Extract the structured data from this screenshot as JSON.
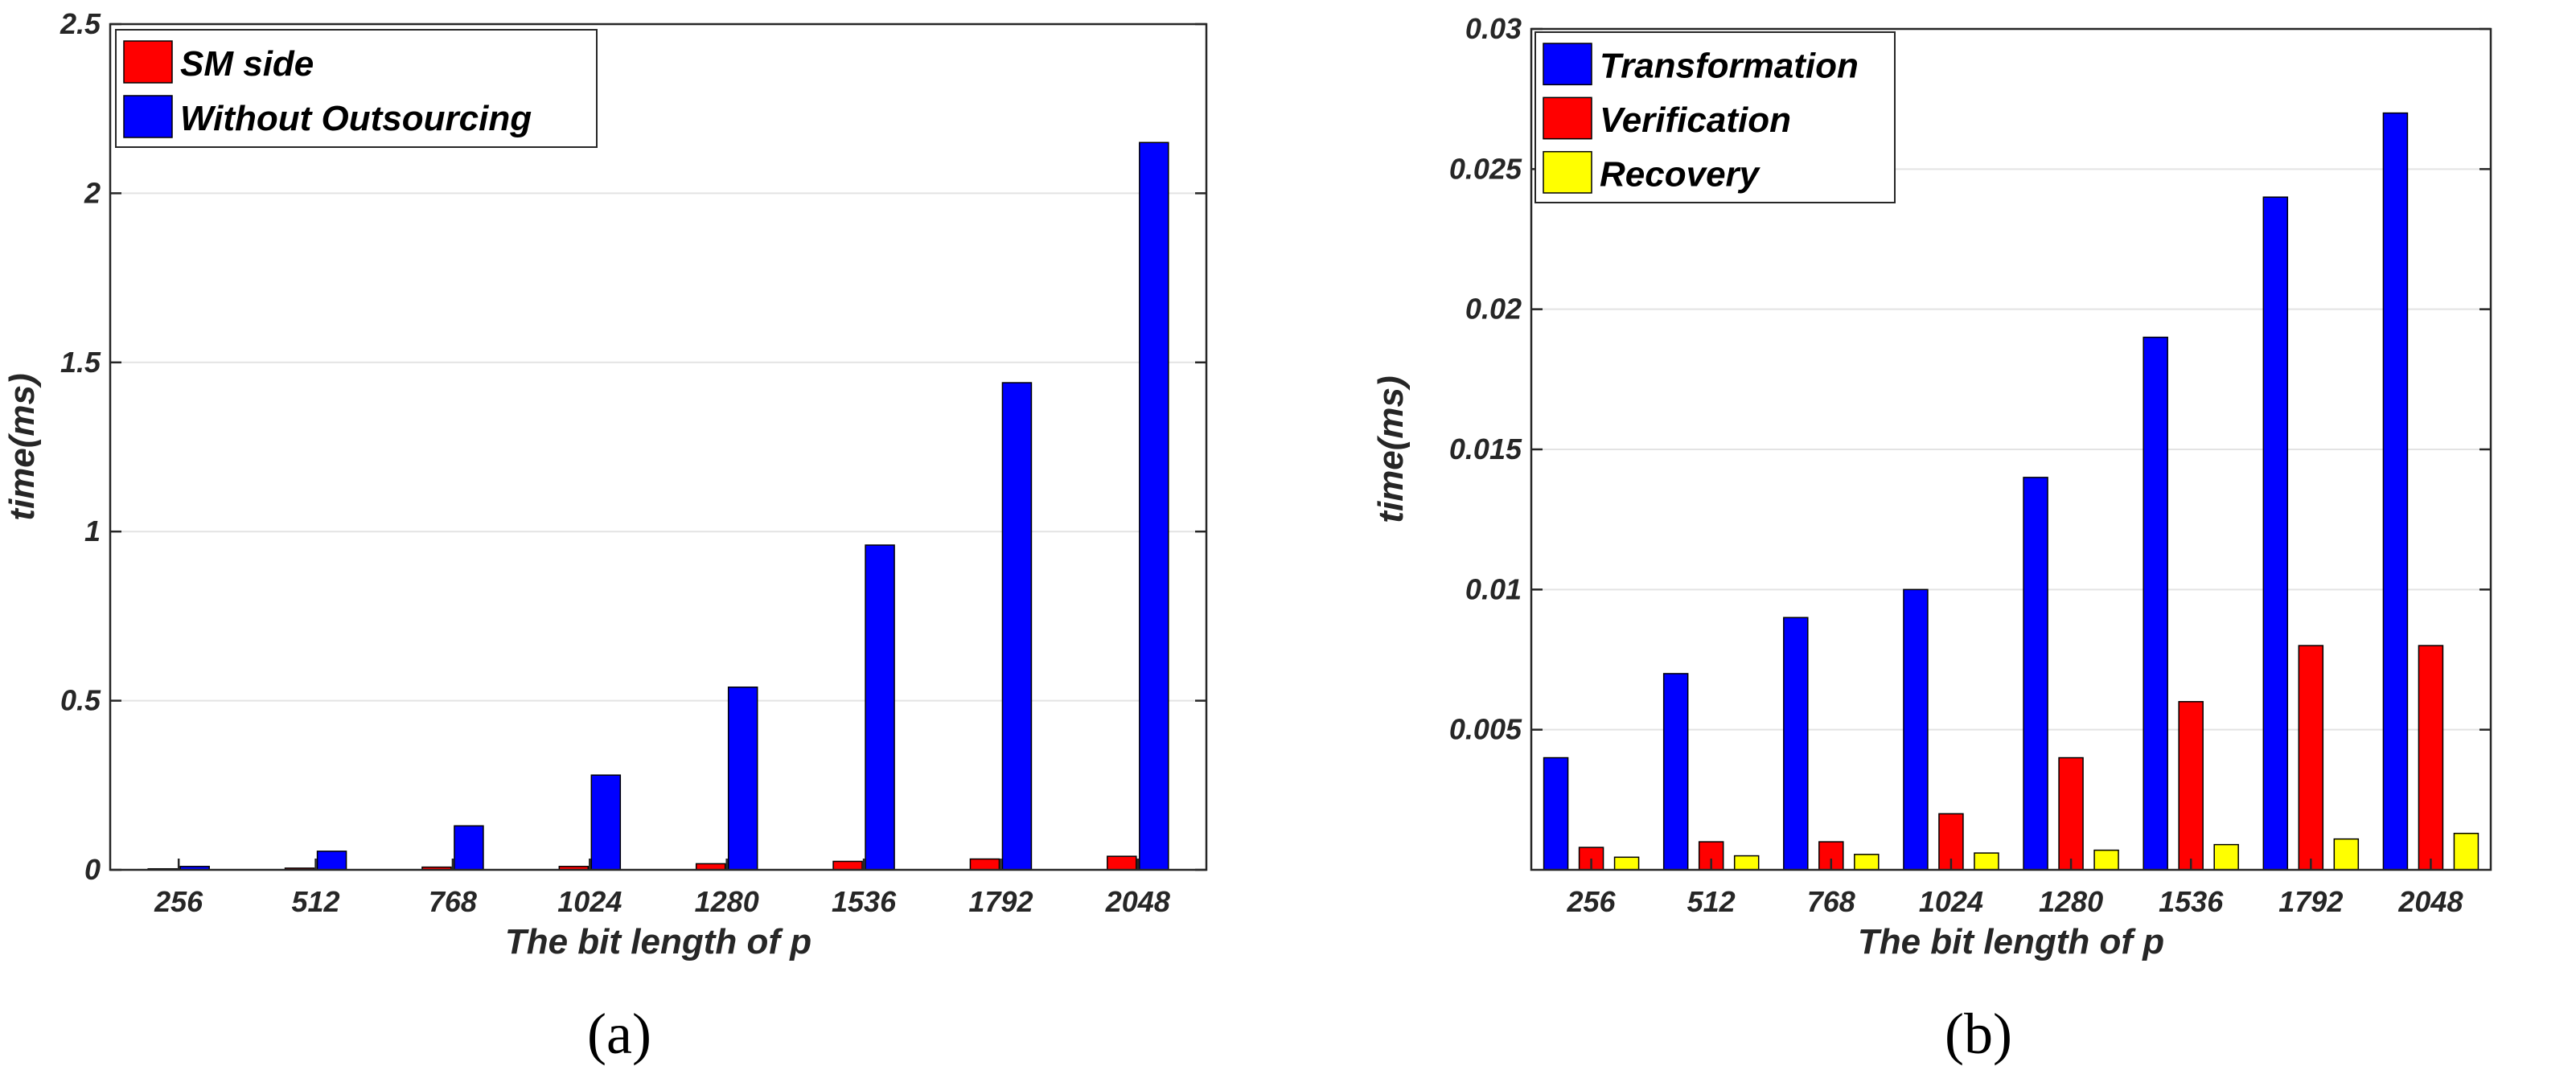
{
  "captions": [
    "(a)",
    "(b)"
  ],
  "chart_data": [
    {
      "type": "bar",
      "xlabel": "The bit length of p",
      "ylabel": "time(ms)",
      "categories": [
        "256",
        "512",
        "768",
        "1024",
        "1280",
        "1536",
        "1792",
        "2048"
      ],
      "ylim": [
        0,
        2.5
      ],
      "yticks": [
        0,
        0.5,
        1,
        1.5,
        2,
        2.5
      ],
      "ytick_labels": [
        "0",
        "0.5",
        "1",
        "1.5",
        "2",
        "2.5"
      ],
      "grid": true,
      "legend_position": "top-left",
      "series": [
        {
          "name": "SM side",
          "color": "#ff0000",
          "values": [
            0.003,
            0.005,
            0.008,
            0.01,
            0.018,
            0.025,
            0.032,
            0.04
          ]
        },
        {
          "name": "Without Outsourcing",
          "color": "#0000ff",
          "values": [
            0.01,
            0.055,
            0.13,
            0.28,
            0.54,
            0.96,
            1.44,
            2.15
          ]
        }
      ]
    },
    {
      "type": "bar",
      "xlabel": "The bit length of p",
      "ylabel": "time(ms)",
      "categories": [
        "256",
        "512",
        "768",
        "1024",
        "1280",
        "1536",
        "1792",
        "2048"
      ],
      "ylim": [
        0,
        0.03
      ],
      "yticks": [
        0.005,
        0.01,
        0.015,
        0.02,
        0.025,
        0.03
      ],
      "ytick_labels": [
        "0.005",
        "0.01",
        "0.015",
        "0.02",
        "0.025",
        "0.03"
      ],
      "grid": true,
      "legend_position": "top-left",
      "series": [
        {
          "name": "Transformation",
          "color": "#0000ff",
          "values": [
            0.004,
            0.007,
            0.009,
            0.01,
            0.014,
            0.019,
            0.024,
            0.027
          ]
        },
        {
          "name": "Verification",
          "color": "#ff0000",
          "values": [
            0.0008,
            0.001,
            0.001,
            0.002,
            0.004,
            0.006,
            0.008,
            0.008
          ]
        },
        {
          "name": "Recovery",
          "color": "#ffff00",
          "values": [
            0.00045,
            0.0005,
            0.00055,
            0.0006,
            0.0007,
            0.0009,
            0.0011,
            0.0013
          ]
        }
      ]
    }
  ]
}
